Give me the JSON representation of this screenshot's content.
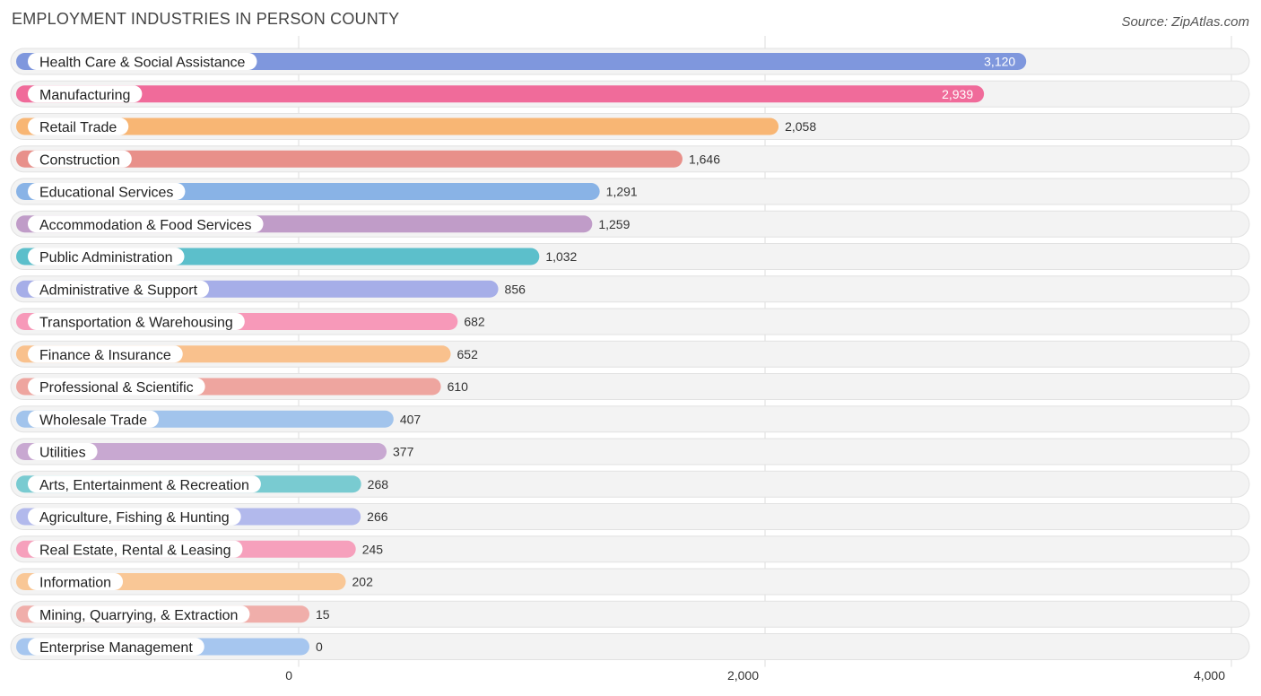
{
  "header": {
    "title": "EMPLOYMENT INDUSTRIES IN PERSON COUNTY",
    "source": "Source: ZipAtlas.com"
  },
  "chart_data": {
    "type": "bar",
    "orientation": "horizontal",
    "title": "EMPLOYMENT INDUSTRIES IN PERSON COUNTY",
    "xlabel": "",
    "ylabel": "",
    "xlim": [
      0,
      4000
    ],
    "ticks": [
      0,
      2000,
      4000
    ],
    "tick_labels": [
      "0",
      "2,000",
      "4,000"
    ],
    "grid": true,
    "categories": [
      "Health Care & Social Assistance",
      "Manufacturing",
      "Retail Trade",
      "Construction",
      "Educational Services",
      "Accommodation & Food Services",
      "Public Administration",
      "Administrative & Support",
      "Transportation & Warehousing",
      "Finance & Insurance",
      "Professional & Scientific",
      "Wholesale Trade",
      "Utilities",
      "Arts, Entertainment & Recreation",
      "Agriculture, Fishing & Hunting",
      "Real Estate, Rental & Leasing",
      "Information",
      "Mining, Quarrying, & Extraction",
      "Enterprise Management"
    ],
    "values": [
      3120,
      2939,
      2058,
      1646,
      1291,
      1259,
      1032,
      856,
      682,
      652,
      610,
      407,
      377,
      268,
      266,
      245,
      202,
      15,
      0
    ],
    "value_labels": [
      "3,120",
      "2,939",
      "2,058",
      "1,646",
      "1,291",
      "1,259",
      "1,032",
      "856",
      "682",
      "652",
      "610",
      "407",
      "377",
      "268",
      "266",
      "245",
      "202",
      "15",
      "0"
    ],
    "colors": [
      "#7f97dd",
      "#f06b9a",
      "#f8b674",
      "#e8908a",
      "#89b3e6",
      "#c09cc8",
      "#5cbfcb",
      "#a6aee8",
      "#f799b9",
      "#f9c18d",
      "#eea59f",
      "#a2c4ec",
      "#c8a8d1",
      "#79cbd1",
      "#b2b9ec",
      "#f6a0bc",
      "#f9c796",
      "#f0aeaa",
      "#a6c6ef"
    ]
  }
}
